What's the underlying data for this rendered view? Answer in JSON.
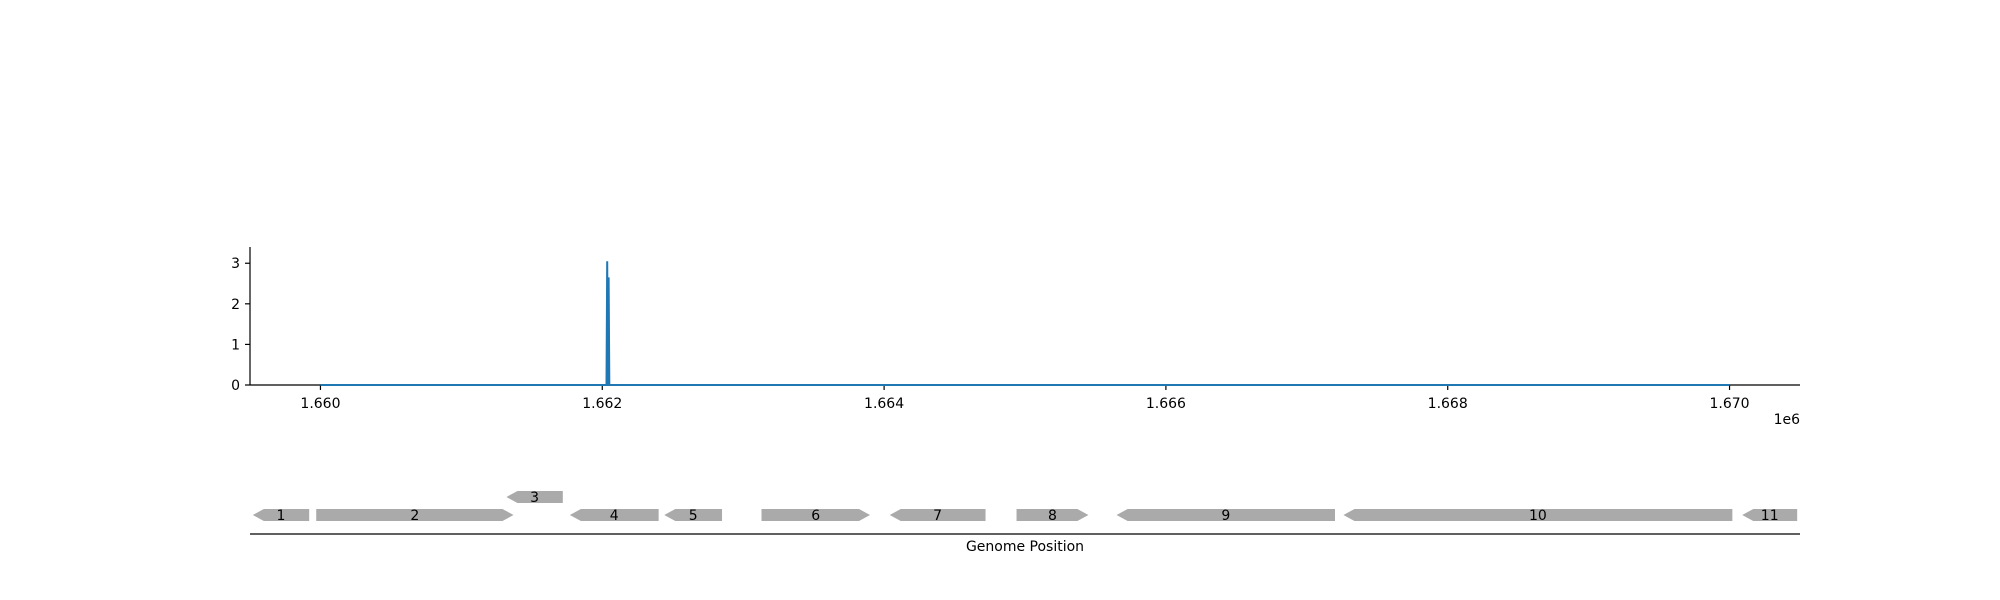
{
  "chart_data": [
    {
      "type": "line",
      "title": "",
      "xlabel": "",
      "ylabel": "",
      "x_offset_label": "1e6",
      "xlim": [
        1659500,
        1670500
      ],
      "ylim": [
        0,
        3.4
      ],
      "grid": false,
      "legend": "none",
      "x_ticks": [
        1660000,
        1662000,
        1664000,
        1666000,
        1668000,
        1670000
      ],
      "x_tick_labels": [
        "1.660",
        "1.662",
        "1.664",
        "1.666",
        "1.668",
        "1.670"
      ],
      "y_ticks": [
        0,
        1,
        2,
        3
      ],
      "y_tick_labels": [
        "0",
        "1",
        "2",
        "3"
      ],
      "series": [
        {
          "color": "#1f77b4",
          "x": [
            1660000,
            1662030,
            1662035,
            1662040,
            1662045,
            1662050,
            1670000
          ],
          "y": [
            0,
            0,
            3.05,
            0,
            2.65,
            0,
            0
          ]
        }
      ]
    },
    {
      "type": "gene_track",
      "xlabel": "Genome Position",
      "xlim": [
        1659500,
        1670500
      ],
      "gene_color": "#aaaaaa",
      "genes": [
        {
          "label": "1",
          "start": 1659520,
          "end": 1659920,
          "strand": "-",
          "row": 0
        },
        {
          "label": "2",
          "start": 1659970,
          "end": 1661370,
          "strand": "+",
          "row": 0
        },
        {
          "label": "3",
          "start": 1661320,
          "end": 1661720,
          "strand": "-",
          "row": 1
        },
        {
          "label": "4",
          "start": 1661770,
          "end": 1662400,
          "strand": "-",
          "row": 0
        },
        {
          "label": "5",
          "start": 1662440,
          "end": 1662850,
          "strand": "-",
          "row": 0
        },
        {
          "label": "6",
          "start": 1663130,
          "end": 1663900,
          "strand": "+",
          "row": 0
        },
        {
          "label": "7",
          "start": 1664040,
          "end": 1664720,
          "strand": "-",
          "row": 0
        },
        {
          "label": "8",
          "start": 1664940,
          "end": 1665450,
          "strand": "+",
          "row": 0
        },
        {
          "label": "9",
          "start": 1665650,
          "end": 1667200,
          "strand": "-",
          "row": 0
        },
        {
          "label": "10",
          "start": 1667260,
          "end": 1670020,
          "strand": "-",
          "row": 0
        },
        {
          "label": "11",
          "start": 1670090,
          "end": 1670480,
          "strand": "-",
          "row": 0
        }
      ]
    }
  ]
}
